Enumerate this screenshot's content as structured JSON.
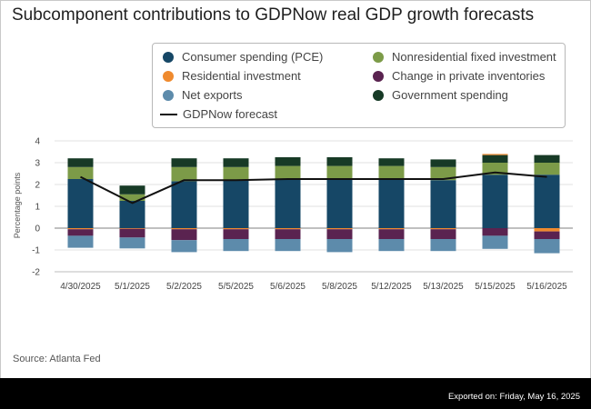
{
  "page": {
    "title": "Subcomponent contributions to GDPNow real GDP growth forecasts",
    "source": "Source: Atlanta Fed",
    "export_text": "Exported on: Friday, May 16, 2025"
  },
  "legend": [
    {
      "label": "Consumer spending (PCE)",
      "color": "#164766",
      "kind": "dot"
    },
    {
      "label": "Nonresidential fixed investment",
      "color": "#7c9b48",
      "kind": "dot"
    },
    {
      "label": "Residential investment",
      "color": "#ef8a2e",
      "kind": "dot"
    },
    {
      "label": "Change in private inventories",
      "color": "#5a2350",
      "kind": "dot"
    },
    {
      "label": "Net exports",
      "color": "#5d8bab",
      "kind": "dot"
    },
    {
      "label": "Government spending",
      "color": "#173a26",
      "kind": "dot"
    },
    {
      "label": "GDPNow forecast",
      "color": "#111111",
      "kind": "line"
    }
  ],
  "chart_data": {
    "type": "bar",
    "stacked": true,
    "title": "Subcomponent contributions to GDPNow real GDP growth forecasts",
    "xlabel": "",
    "ylabel": "Percentage points",
    "ylim": [
      -2,
      4
    ],
    "yticks": [
      -2,
      -1,
      0,
      1,
      2,
      3,
      4
    ],
    "categories": [
      "4/30/2025",
      "5/1/2025",
      "5/2/2025",
      "5/5/2025",
      "5/6/2025",
      "5/8/2025",
      "5/12/2025",
      "5/13/2025",
      "5/15/2025",
      "5/16/2025"
    ],
    "series": [
      {
        "name": "Consumer spending (PCE)",
        "color": "#164766",
        "values": [
          2.25,
          1.25,
          2.15,
          2.2,
          2.25,
          2.25,
          2.25,
          2.2,
          2.45,
          2.45
        ]
      },
      {
        "name": "Nonresidential fixed investment",
        "color": "#7c9b48",
        "values": [
          0.55,
          0.3,
          0.65,
          0.6,
          0.6,
          0.6,
          0.6,
          0.6,
          0.55,
          0.55
        ]
      },
      {
        "name": "Government spending",
        "color": "#173a26",
        "values": [
          0.4,
          0.4,
          0.4,
          0.4,
          0.4,
          0.4,
          0.35,
          0.35,
          0.35,
          0.35
        ]
      },
      {
        "name": "Residential investment",
        "color": "#ef8a2e",
        "values": [
          -0.05,
          -0.03,
          -0.05,
          -0.05,
          -0.05,
          -0.05,
          -0.05,
          -0.05,
          0.05,
          -0.15
        ]
      },
      {
        "name": "Change in private inventories",
        "color": "#5a2350",
        "values": [
          -0.3,
          -0.4,
          -0.5,
          -0.45,
          -0.45,
          -0.45,
          -0.45,
          -0.45,
          -0.35,
          -0.35
        ]
      },
      {
        "name": "Net exports",
        "color": "#5d8bab",
        "values": [
          -0.55,
          -0.5,
          -0.55,
          -0.55,
          -0.55,
          -0.6,
          -0.55,
          -0.55,
          -0.6,
          -0.65
        ]
      }
    ],
    "line": {
      "name": "GDPNow forecast",
      "color": "#111111",
      "values": [
        2.35,
        1.15,
        2.2,
        2.2,
        2.25,
        2.25,
        2.25,
        2.25,
        2.55,
        2.35
      ]
    }
  }
}
